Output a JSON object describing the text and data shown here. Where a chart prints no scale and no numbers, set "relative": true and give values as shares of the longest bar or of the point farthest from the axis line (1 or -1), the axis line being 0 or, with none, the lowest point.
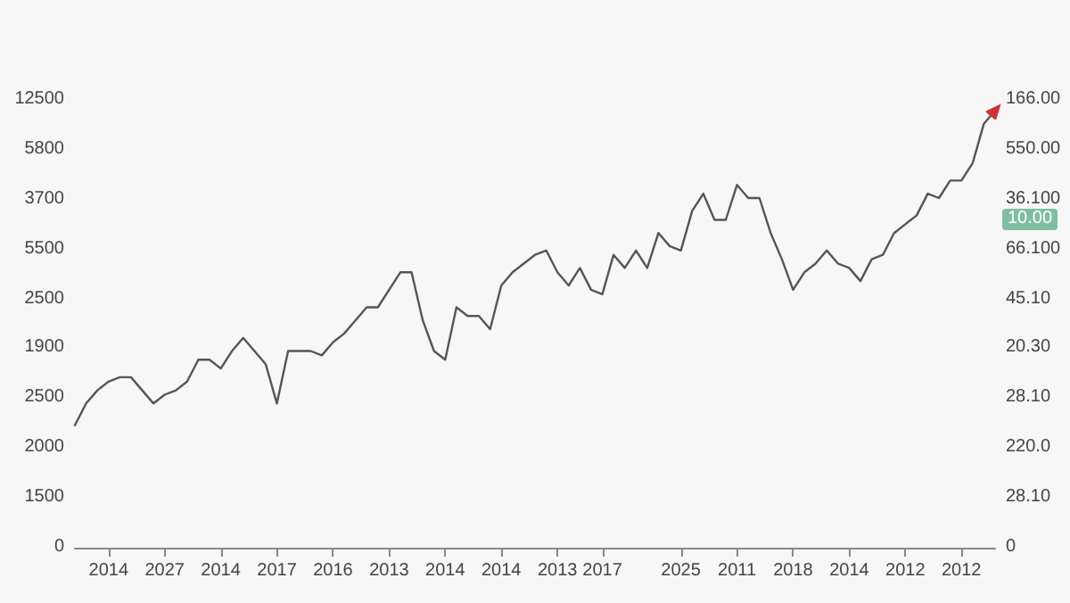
{
  "chart_data": {
    "type": "line",
    "relative": true,
    "categories": [
      null,
      null,
      null,
      "2014",
      null,
      null,
      null,
      null,
      "2027",
      null,
      null,
      null,
      null,
      "2014",
      null,
      null,
      null,
      null,
      "2017",
      null,
      null,
      null,
      null,
      "2016",
      null,
      null,
      null,
      null,
      "2013",
      null,
      null,
      null,
      null,
      "2014",
      null,
      null,
      null,
      null,
      "2014",
      null,
      null,
      null,
      null,
      "2013",
      null,
      null,
      null,
      "2017",
      null,
      null,
      null,
      null,
      null,
      null,
      "2025",
      null,
      null,
      null,
      null,
      "2011",
      null,
      null,
      null,
      null,
      "2018",
      null,
      null,
      null,
      null,
      "2014",
      null,
      null,
      null,
      null,
      "2012",
      null,
      null,
      null,
      null,
      "2012",
      null,
      null,
      null
    ],
    "series": [
      {
        "color": "#555555",
        "values": [
          0.28,
          0.33,
          0.36,
          0.38,
          0.39,
          0.39,
          0.36,
          0.33,
          0.35,
          0.36,
          0.38,
          0.43,
          0.43,
          0.41,
          0.45,
          0.48,
          0.45,
          0.42,
          0.33,
          0.45,
          0.45,
          0.45,
          0.44,
          0.47,
          0.49,
          0.52,
          0.55,
          0.55,
          0.59,
          0.63,
          0.63,
          0.52,
          0.45,
          0.43,
          0.55,
          0.53,
          0.53,
          0.5,
          0.6,
          0.63,
          0.65,
          0.67,
          0.68,
          0.63,
          0.6,
          0.64,
          0.59,
          0.58,
          0.67,
          0.64,
          0.68,
          0.64,
          0.72,
          0.69,
          0.68,
          0.77,
          0.81,
          0.75,
          0.75,
          0.83,
          0.8,
          0.8,
          0.72,
          0.66,
          0.59,
          0.63,
          0.65,
          0.68,
          0.65,
          0.64,
          0.61,
          0.66,
          0.67,
          0.72,
          0.74,
          0.76,
          0.81,
          0.8,
          0.84,
          0.84,
          0.88,
          0.97,
          1
        ]
      }
    ],
    "annotations": [
      "12500",
      "5800",
      "3700",
      "5500",
      "2500",
      "1900",
      "2500",
      "2000",
      "1500",
      "0",
      "166.00",
      "550.00",
      "36.100",
      "66.100",
      "45.10",
      "20.30",
      "28.10",
      "220.0",
      "28.10",
      "0",
      "10.00"
    ],
    "marker": "none",
    "line_style": "solid"
  }
}
